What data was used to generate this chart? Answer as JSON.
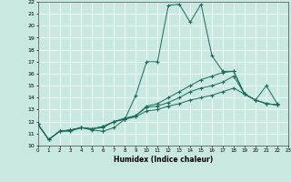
{
  "xlabel": "Humidex (Indice chaleur)",
  "xlim": [
    0,
    23
  ],
  "ylim": [
    10,
    22
  ],
  "yticks": [
    10,
    11,
    12,
    13,
    14,
    15,
    16,
    17,
    18,
    19,
    20,
    21,
    22
  ],
  "xticks": [
    0,
    1,
    2,
    3,
    4,
    5,
    6,
    7,
    8,
    9,
    10,
    11,
    12,
    13,
    14,
    15,
    16,
    17,
    18,
    19,
    20,
    21,
    22,
    23
  ],
  "bg_color": "#c8e8e0",
  "grid_color": "#ffffff",
  "line_color": "#1a6b5a",
  "series": [
    [
      11.8,
      10.5,
      11.2,
      11.2,
      11.5,
      11.3,
      11.2,
      11.5,
      12.2,
      14.2,
      17.0,
      17.0,
      21.7,
      21.8,
      20.3,
      21.8,
      17.5,
      16.2,
      16.2,
      14.3,
      13.8,
      15.0,
      13.5
    ],
    [
      11.8,
      10.5,
      11.2,
      11.3,
      11.5,
      11.4,
      11.5,
      12.0,
      12.3,
      12.5,
      13.3,
      13.5,
      14.0,
      14.5,
      15.0,
      15.5,
      15.8,
      16.1,
      16.2,
      14.3,
      13.8,
      13.5,
      13.4
    ],
    [
      11.8,
      10.5,
      11.2,
      11.3,
      11.5,
      11.4,
      11.6,
      12.0,
      12.2,
      12.5,
      13.2,
      13.3,
      13.6,
      14.0,
      14.5,
      14.8,
      15.0,
      15.3,
      15.8,
      14.3,
      13.8,
      13.5,
      13.4
    ],
    [
      11.8,
      10.5,
      11.2,
      11.3,
      11.5,
      11.4,
      11.6,
      12.0,
      12.2,
      12.4,
      12.9,
      13.0,
      13.3,
      13.5,
      13.8,
      14.0,
      14.2,
      14.5,
      14.8,
      14.3,
      13.8,
      13.5,
      13.4
    ]
  ]
}
